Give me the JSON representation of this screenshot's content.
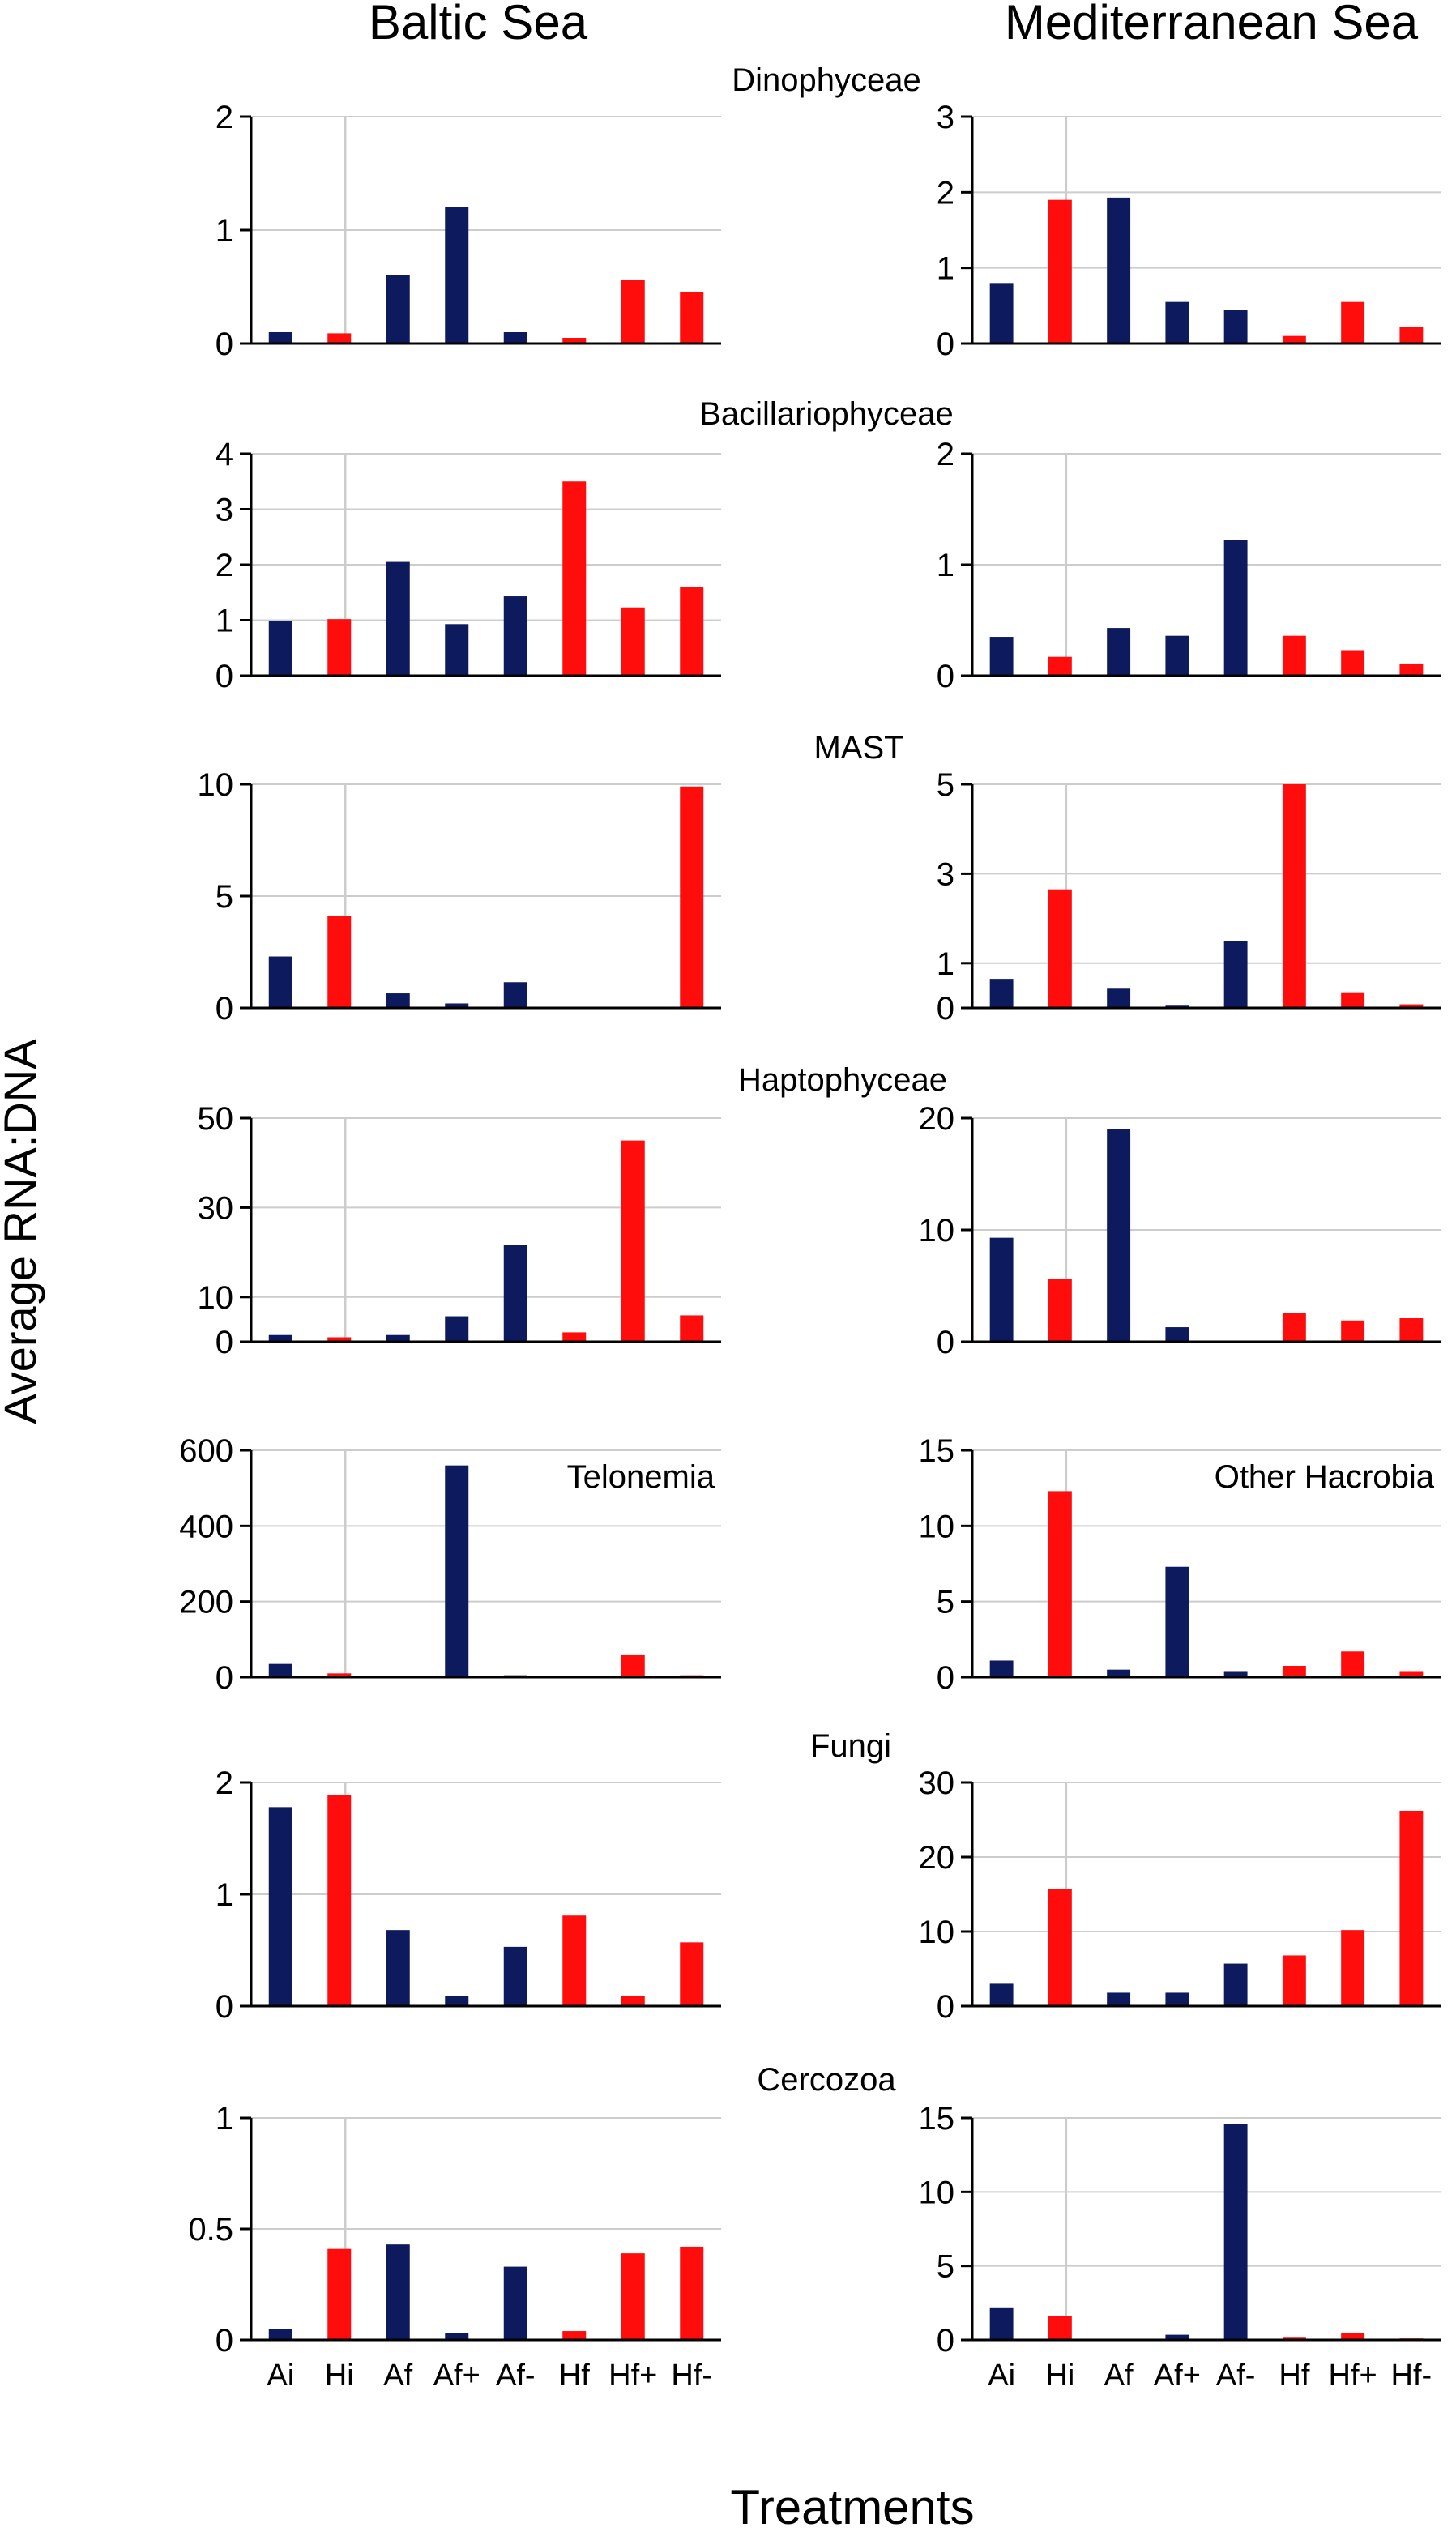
{
  "titles": {
    "left_column": "Baltic Sea",
    "right_column": "Mediterranean Sea",
    "ylabel": "Average RNA:DNA",
    "xlabel": "Treatments"
  },
  "colors": {
    "autotrophic": "#0d1b5e",
    "heterotrophic": "#ff0d0d",
    "divider": "#cccccc",
    "axis": "#000000"
  },
  "treatments": [
    "Ai",
    "Hi",
    "Af",
    "Af+",
    "Af-",
    "Hf",
    "Hf+",
    "Hf-"
  ],
  "bar_color_keys": [
    "autotrophic",
    "heterotrophic",
    "autotrophic",
    "autotrophic",
    "autotrophic",
    "heterotrophic",
    "heterotrophic",
    "heterotrophic"
  ],
  "chart_data": [
    {
      "type": "bar",
      "panel": "Baltic Sea",
      "title": "Dinophyceae",
      "categories": [
        "Ai",
        "Hi",
        "Af",
        "Af+",
        "Af-",
        "Hf",
        "Hf+",
        "Hf-"
      ],
      "values": [
        0.1,
        0.09,
        0.6,
        1.2,
        0.1,
        0.05,
        0.56,
        0.45
      ],
      "ylim": [
        0,
        2
      ],
      "yticks": [
        "0",
        "1",
        "2"
      ],
      "ytick_values": [
        0,
        1,
        2
      ]
    },
    {
      "type": "bar",
      "panel": "Mediterranean Sea",
      "title": "Dinophyceae",
      "categories": [
        "Ai",
        "Hi",
        "Af",
        "Af+",
        "Af-",
        "Hf",
        "Hf+",
        "Hf-"
      ],
      "values": [
        0.8,
        1.9,
        1.93,
        0.55,
        0.45,
        0.1,
        0.55,
        0.22
      ],
      "ylim": [
        0,
        3
      ],
      "yticks": [
        "0",
        "1",
        "2",
        "3"
      ],
      "ytick_values": [
        0,
        1,
        2,
        3
      ]
    },
    {
      "type": "bar",
      "panel": "Baltic Sea",
      "title": "Bacillariophyceae",
      "categories": [
        "Ai",
        "Hi",
        "Af",
        "Af+",
        "Af-",
        "Hf",
        "Hf+",
        "Hf-"
      ],
      "values": [
        0.98,
        1.02,
        2.05,
        0.93,
        1.43,
        3.5,
        1.23,
        1.6
      ],
      "ylim": [
        0,
        4
      ],
      "yticks": [
        "0",
        "1",
        "2",
        "3",
        "4"
      ],
      "ytick_values": [
        0,
        1,
        2,
        3,
        4
      ]
    },
    {
      "type": "bar",
      "panel": "Mediterranean Sea",
      "title": "Bacillariophyceae",
      "categories": [
        "Ai",
        "Hi",
        "Af",
        "Af+",
        "Af-",
        "Hf",
        "Hf+",
        "Hf-"
      ],
      "values": [
        0.35,
        0.17,
        0.43,
        0.36,
        1.22,
        0.36,
        0.23,
        0.11
      ],
      "ylim": [
        0,
        2
      ],
      "yticks": [
        "0",
        "1",
        "2"
      ],
      "ytick_values": [
        0,
        1,
        2
      ]
    },
    {
      "type": "bar",
      "panel": "Baltic Sea",
      "title": "MAST",
      "categories": [
        "Ai",
        "Hi",
        "Af",
        "Af+",
        "Af-",
        "Hf",
        "Hf+",
        "Hf-"
      ],
      "values": [
        2.3,
        4.1,
        0.65,
        0.2,
        1.15,
        0,
        0,
        9.9
      ],
      "ylim": [
        0,
        10
      ],
      "yticks": [
        "0",
        "5",
        "10"
      ],
      "ytick_values": [
        0,
        5,
        10
      ]
    },
    {
      "type": "bar",
      "panel": "Mediterranean Sea",
      "title": "MAST",
      "categories": [
        "Ai",
        "Hi",
        "Af",
        "Af+",
        "Af-",
        "Hf",
        "Hf+",
        "Hf-"
      ],
      "values": [
        0.65,
        2.65,
        0.43,
        0.05,
        1.5,
        5.0,
        0.35,
        0.08
      ],
      "ylim": [
        0,
        5
      ],
      "yticks": [
        "0",
        "1",
        "3",
        "5"
      ],
      "ytick_values": [
        0,
        1,
        3,
        5
      ]
    },
    {
      "type": "bar",
      "panel": "Baltic Sea",
      "title": "Haptophyceae",
      "categories": [
        "Ai",
        "Hi",
        "Af",
        "Af+",
        "Af-",
        "Hf",
        "Hf+",
        "Hf-"
      ],
      "values": [
        1.5,
        1.0,
        1.5,
        5.7,
        21.7,
        2.1,
        45.0,
        5.9
      ],
      "ylim": [
        0,
        50
      ],
      "yticks": [
        "0",
        "10",
        "30",
        "50"
      ],
      "ytick_values": [
        0,
        10,
        30,
        50
      ]
    },
    {
      "type": "bar",
      "panel": "Mediterranean Sea",
      "title": "Haptophyceae",
      "categories": [
        "Ai",
        "Hi",
        "Af",
        "Af+",
        "Af-",
        "Hf",
        "Hf+",
        "Hf-"
      ],
      "values": [
        9.3,
        5.6,
        19.0,
        1.3,
        0,
        2.6,
        1.9,
        2.1
      ],
      "ylim": [
        0,
        20
      ],
      "yticks": [
        "0",
        "10",
        "20"
      ],
      "ytick_values": [
        0,
        10,
        20
      ]
    },
    {
      "type": "bar",
      "panel": "Baltic Sea",
      "title": "Telonemia",
      "categories": [
        "Ai",
        "Hi",
        "Af",
        "Af+",
        "Af-",
        "Hf",
        "Hf+",
        "Hf-"
      ],
      "values": [
        35,
        10,
        0,
        560,
        5,
        2,
        58,
        5
      ],
      "ylim": [
        0,
        600
      ],
      "yticks": [
        "0",
        "200",
        "400",
        "600"
      ],
      "ytick_values": [
        0,
        200,
        400,
        600
      ]
    },
    {
      "type": "bar",
      "panel": "Mediterranean Sea",
      "title": "Other Hacrobia",
      "categories": [
        "Ai",
        "Hi",
        "Af",
        "Af+",
        "Af-",
        "Hf",
        "Hf+",
        "Hf-"
      ],
      "values": [
        1.1,
        12.3,
        0.5,
        7.3,
        0.35,
        0.75,
        1.7,
        0.35
      ],
      "ylim": [
        0,
        15
      ],
      "yticks": [
        "0",
        "5",
        "10",
        "15"
      ],
      "ytick_values": [
        0,
        5,
        10,
        15
      ]
    },
    {
      "type": "bar",
      "panel": "Baltic Sea",
      "title": "Fungi",
      "categories": [
        "Ai",
        "Hi",
        "Af",
        "Af+",
        "Af-",
        "Hf",
        "Hf+",
        "Hf-"
      ],
      "values": [
        1.78,
        1.89,
        0.68,
        0.09,
        0.53,
        0.81,
        0.09,
        0.57
      ],
      "ylim": [
        0,
        2
      ],
      "yticks": [
        "0",
        "1",
        "2"
      ],
      "ytick_values": [
        0,
        1,
        2
      ]
    },
    {
      "type": "bar",
      "panel": "Mediterranean Sea",
      "title": "Fungi",
      "categories": [
        "Ai",
        "Hi",
        "Af",
        "Af+",
        "Af-",
        "Hf",
        "Hf+",
        "Hf-"
      ],
      "values": [
        3.0,
        15.7,
        1.8,
        1.8,
        5.7,
        6.8,
        10.2,
        26.2
      ],
      "ylim": [
        0,
        30
      ],
      "yticks": [
        "0",
        "10",
        "20",
        "30"
      ],
      "ytick_values": [
        0,
        10,
        20,
        30
      ]
    },
    {
      "type": "bar",
      "panel": "Baltic Sea",
      "title": "Cercozoa",
      "categories": [
        "Ai",
        "Hi",
        "Af",
        "Af+",
        "Af-",
        "Hf",
        "Hf+",
        "Hf-"
      ],
      "values": [
        0.05,
        0.41,
        0.43,
        0.03,
        0.33,
        0.04,
        0.39,
        0.42
      ],
      "ylim": [
        0,
        1
      ],
      "yticks": [
        "0",
        "0.5",
        "1"
      ],
      "ytick_values": [
        0,
        0.5,
        1
      ]
    },
    {
      "type": "bar",
      "panel": "Mediterranean Sea",
      "title": "Cercozoa",
      "categories": [
        "Ai",
        "Hi",
        "Af",
        "Af+",
        "Af-",
        "Hf",
        "Hf+",
        "Hf-"
      ],
      "values": [
        2.2,
        1.6,
        0,
        0.35,
        14.6,
        0.15,
        0.45,
        0.1
      ],
      "ylim": [
        0,
        15
      ],
      "yticks": [
        "0",
        "5",
        "10",
        "15"
      ],
      "ytick_values": [
        0,
        5,
        10,
        15
      ]
    }
  ]
}
